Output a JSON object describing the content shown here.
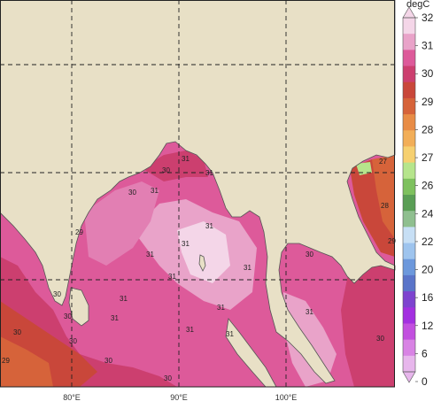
{
  "map": {
    "land_color": "#e8e0c6",
    "coast_color": "#555555",
    "grid_color": "#222222",
    "lon_labels": [
      "80°E",
      "90°E",
      "100°E"
    ],
    "contour_labels": [
      "30",
      "31",
      "31",
      "30",
      "31",
      "29",
      "31",
      "31",
      "31",
      "31",
      "31",
      "31",
      "31",
      "31",
      "30",
      "30",
      "30",
      "30",
      "29",
      "31",
      "31",
      "31",
      "30",
      "28",
      "29",
      "27",
      "30",
      "30",
      "30"
    ]
  },
  "colorbar": {
    "unit": "degC",
    "ticks": [
      "32",
      "31",
      "30",
      "29",
      "28",
      "27",
      "26",
      "24",
      "22",
      "20",
      "16",
      "12",
      "6",
      "0"
    ],
    "colors": [
      "#f4d6e8",
      "#e9a3c9",
      "#dd5a9a",
      "#cc3f6f",
      "#c9473a",
      "#d6633a",
      "#e88c46",
      "#f2ae58",
      "#f6d070",
      "#b6e58c",
      "#7ec15e",
      "#5a9e55",
      "#8fbf8f",
      "#c7dff5",
      "#9ec4ee",
      "#6c98dc",
      "#5a74c9",
      "#7d43cf",
      "#a32fe0",
      "#c24fdf",
      "#d883e4",
      "#e7b6ec"
    ]
  }
}
